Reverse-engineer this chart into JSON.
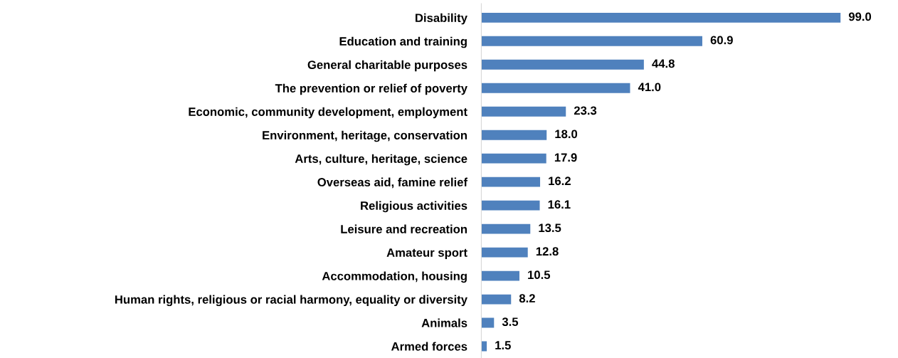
{
  "chart_data": {
    "type": "bar",
    "orientation": "horizontal",
    "color": "#4f81bd",
    "categories": [
      "Disability",
      "Education and training",
      "General charitable purposes",
      "The prevention or relief of poverty",
      "Economic, community development, employment",
      "Environment, heritage, conservation",
      "Arts, culture, heritage, science",
      "Overseas aid, famine relief",
      "Religious activities",
      "Leisure and recreation",
      "Amateur sport",
      "Accommodation, housing",
      "Human rights, religious or racial harmony, equality or diversity",
      "Animals",
      "Armed forces"
    ],
    "values": [
      99.0,
      60.9,
      44.8,
      41.0,
      23.3,
      18.0,
      17.9,
      16.2,
      16.1,
      13.5,
      12.8,
      10.5,
      8.2,
      3.5,
      1.5
    ],
    "value_labels": [
      "99.0",
      "60.9",
      "44.8",
      "41.0",
      "23.3",
      "18.0",
      "17.9",
      "16.2",
      "16.1",
      "13.5",
      "12.8",
      "10.5",
      "8.2",
      "3.5",
      "1.5"
    ]
  }
}
